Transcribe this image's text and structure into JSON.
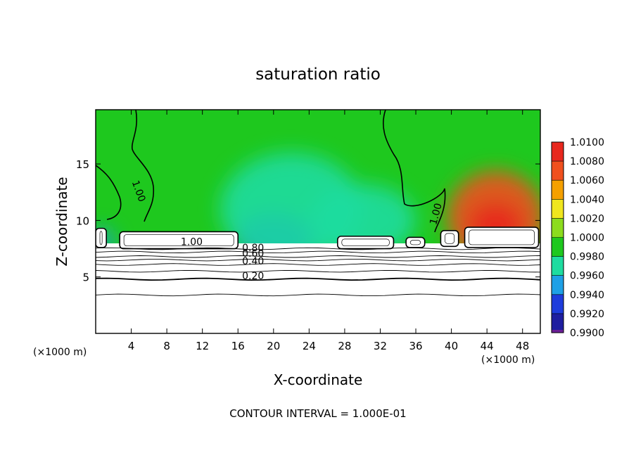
{
  "chart_data": {
    "type": "heatmap",
    "title": "saturation ratio",
    "xlabel": "X-coordinate",
    "ylabel": "Z-coordinate",
    "x_unit_left": "(×1000 m)",
    "x_unit_right": "(×1000 m)",
    "xlim": [
      0,
      50
    ],
    "ylim": [
      0,
      19.8
    ],
    "x_ticks": [
      4,
      8,
      12,
      16,
      20,
      24,
      28,
      32,
      36,
      40,
      44,
      48
    ],
    "y_ticks": [
      5,
      10,
      15
    ],
    "colorbar": {
      "levels": [
        {
          "label": "1.0100",
          "value": 1.01,
          "color": "#f2a0a0"
        },
        {
          "label": "1.0080",
          "value": 1.008,
          "color": "#e8281e"
        },
        {
          "label": "1.0060",
          "value": 1.006,
          "color": "#f0501e"
        },
        {
          "label": "1.0040",
          "value": 1.004,
          "color": "#f5a000"
        },
        {
          "label": "1.0020",
          "value": 1.002,
          "color": "#f0e61e"
        },
        {
          "label": "1.0000",
          "value": 1.0,
          "color": "#8cdc1e"
        },
        {
          "label": "0.9980",
          "value": 0.998,
          "color": "#1ec81e"
        },
        {
          "label": "0.9960",
          "value": 0.996,
          "color": "#1edca0"
        },
        {
          "label": "0.9940",
          "value": 0.994,
          "color": "#1ea0e6"
        },
        {
          "label": "0.9920",
          "value": 0.992,
          "color": "#1e3cdc"
        },
        {
          "label": "0.9900",
          "value": 0.99,
          "color": "#1e1ea0"
        }
      ],
      "bottom_color": "#6a1e96"
    },
    "contour_labels": [
      {
        "text": "1.00",
        "x": 4.5,
        "y": 12.5
      },
      {
        "text": "1.00",
        "x": 10.8,
        "y": 7.8
      },
      {
        "text": "1.00",
        "x": 38.6,
        "y": 10.5
      },
      {
        "text": "0.80",
        "x": 17.7,
        "y": 7.3
      },
      {
        "text": "0.60",
        "x": 17.7,
        "y": 6.8
      },
      {
        "text": "0.40",
        "x": 17.7,
        "y": 6.1
      },
      {
        "text": "0.20",
        "x": 17.7,
        "y": 4.8
      }
    ],
    "contour_levels_below": [
      0.2,
      0.3,
      0.4,
      0.5,
      0.6,
      0.7,
      0.8,
      0.9
    ],
    "contour_level_heights": [
      3.4,
      4.8,
      5.5,
      6.1,
      6.5,
      6.8,
      7.2,
      7.5
    ],
    "cloud_patches": [
      {
        "x0": 0.0,
        "x1": 1.2,
        "y0": 7.6,
        "y1": 9.3
      },
      {
        "x0": 2.7,
        "x1": 16.0,
        "y0": 7.5,
        "y1": 9.0
      },
      {
        "x0": 27.2,
        "x1": 33.5,
        "y0": 7.5,
        "y1": 8.6
      },
      {
        "x0": 34.9,
        "x1": 37.0,
        "y0": 7.6,
        "y1": 8.5
      },
      {
        "x0": 38.8,
        "x1": 40.8,
        "y0": 7.7,
        "y1": 9.1
      },
      {
        "x0": 41.5,
        "x1": 49.8,
        "y0": 7.6,
        "y1": 9.4
      }
    ],
    "anomalies": [
      {
        "x": 45.0,
        "y": 10.2,
        "rx": 5.5,
        "ry": 4.2,
        "value": 1.0075
      },
      {
        "x": 20.0,
        "y": 8.4,
        "rx": 4.5,
        "ry": 2.3,
        "value": 0.9935
      },
      {
        "x": 22.0,
        "y": 11.0,
        "rx": 8.0,
        "ry": 5.0,
        "value": 0.9965
      },
      {
        "x": 30.0,
        "y": 10.0,
        "rx": 6.0,
        "ry": 3.2,
        "value": 0.9975
      },
      {
        "x": 0.6,
        "y": 8.2,
        "rx": 1.4,
        "ry": 1.0,
        "value": 0.995
      }
    ],
    "background_value": 0.999,
    "footer": "CONTOUR INTERVAL = 1.000E-01"
  }
}
